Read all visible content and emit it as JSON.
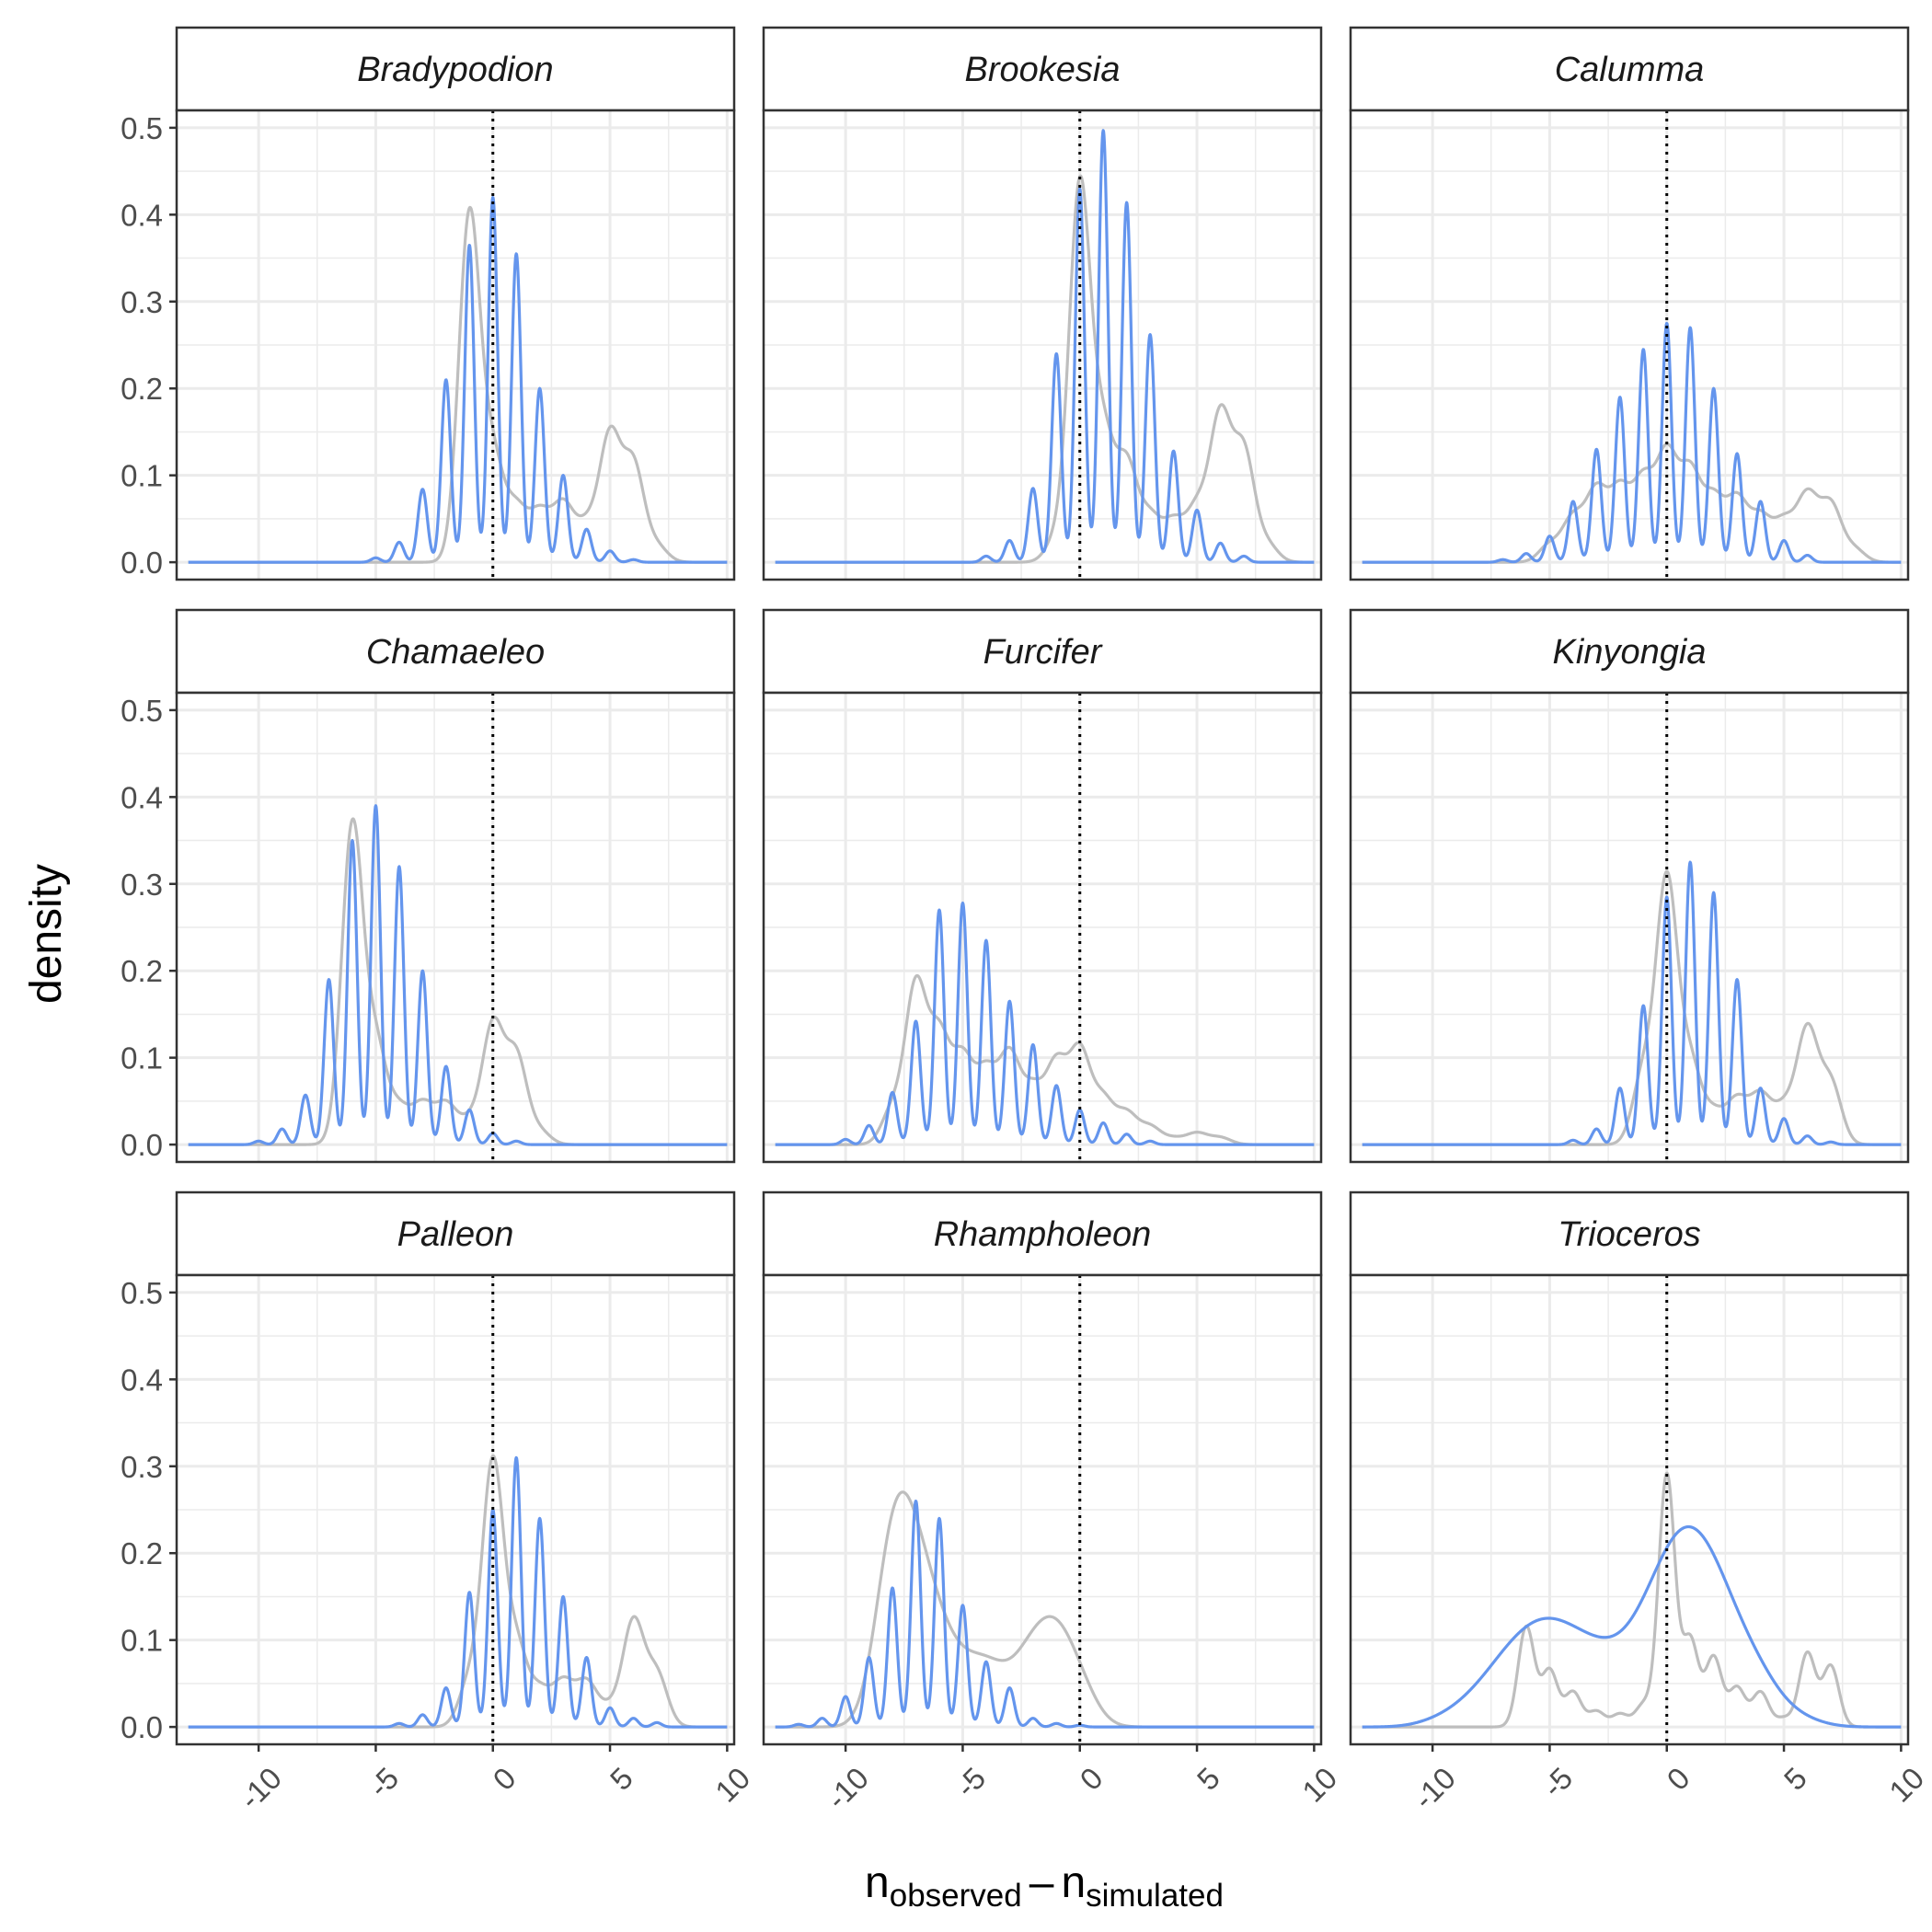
{
  "chart_data": {
    "type": "line",
    "facet_layout": "3x3",
    "xlabel_parts": {
      "base_left": "n",
      "sub_left": "observed",
      "operator": "–",
      "base_right": "n",
      "sub_right": "simulated"
    },
    "ylabel": "density",
    "xlim": [
      -13.5,
      10.3
    ],
    "ylim": [
      -0.02,
      0.52
    ],
    "x_ticks": [
      -10,
      -5,
      0,
      5,
      10
    ],
    "y_ticks": [
      0.0,
      0.1,
      0.2,
      0.3,
      0.4,
      0.5
    ],
    "y_tick_labels": [
      "0.0",
      "0.1",
      "0.2",
      "0.3",
      "0.4",
      "0.5"
    ],
    "x_tick_labels": [
      "-10",
      "-5",
      "0",
      "5",
      "10"
    ],
    "reference_line_x": 0,
    "grid": true,
    "colors": {
      "blue_series": "#6495ED",
      "gray_series": "#BEBEBE",
      "grid": "#EBEBEB",
      "strip_fill": "#FFFFFF",
      "border": "#333333"
    },
    "panels": [
      {
        "title": "Bradypodion",
        "blue": {
          "sigma": 0.2,
          "peaks": [
            [
              -5,
              0.005
            ],
            [
              -4,
              0.023
            ],
            [
              -3,
              0.084
            ],
            [
              -2,
              0.21
            ],
            [
              -1,
              0.365
            ],
            [
              0,
              0.42
            ],
            [
              1,
              0.355
            ],
            [
              2,
              0.2
            ],
            [
              3,
              0.1
            ],
            [
              4,
              0.038
            ],
            [
              5,
              0.013
            ],
            [
              6,
              0.003
            ]
          ]
        },
        "gray": {
          "sigma": 0.45,
          "peaks": [
            [
              -1,
              0.398
            ],
            [
              0,
              0.115
            ],
            [
              1,
              0.06
            ],
            [
              2,
              0.055
            ],
            [
              3,
              0.065
            ],
            [
              4,
              0.04
            ],
            [
              5,
              0.143
            ],
            [
              6,
              0.11
            ],
            [
              7,
              0.018
            ]
          ]
        }
      },
      {
        "title": "Brookesia",
        "blue": {
          "sigma": 0.2,
          "peaks": [
            [
              -4,
              0.007
            ],
            [
              -3,
              0.025
            ],
            [
              -2,
              0.085
            ],
            [
              -1,
              0.24
            ],
            [
              0,
              0.43
            ],
            [
              1,
              0.497
            ],
            [
              2,
              0.414
            ],
            [
              3,
              0.262
            ],
            [
              4,
              0.128
            ],
            [
              5,
              0.06
            ],
            [
              6,
              0.022
            ],
            [
              7,
              0.007
            ]
          ]
        },
        "gray": {
          "sigma": 0.45,
          "peaks": [
            [
              -1,
              0.025
            ],
            [
              0,
              0.43
            ],
            [
              1,
              0.14
            ],
            [
              2,
              0.11
            ],
            [
              3,
              0.05
            ],
            [
              4,
              0.045
            ],
            [
              5,
              0.06
            ],
            [
              6,
              0.165
            ],
            [
              7,
              0.125
            ],
            [
              8,
              0.02
            ]
          ]
        }
      },
      {
        "title": "Calumma",
        "blue": {
          "sigma": 0.2,
          "peaks": [
            [
              -7,
              0.003
            ],
            [
              -6,
              0.01
            ],
            [
              -5,
              0.03
            ],
            [
              -4,
              0.07
            ],
            [
              -3,
              0.13
            ],
            [
              -2,
              0.19
            ],
            [
              -1,
              0.245
            ],
            [
              0,
              0.275
            ],
            [
              1,
              0.27
            ],
            [
              2,
              0.2
            ],
            [
              3,
              0.125
            ],
            [
              4,
              0.07
            ],
            [
              5,
              0.025
            ],
            [
              6,
              0.008
            ]
          ]
        },
        "gray": {
          "sigma": 0.45,
          "peaks": [
            [
              -5,
              0.02
            ],
            [
              -4,
              0.05
            ],
            [
              -3,
              0.08
            ],
            [
              -2,
              0.08
            ],
            [
              -1,
              0.09
            ],
            [
              0,
              0.12
            ],
            [
              1,
              0.1
            ],
            [
              2,
              0.07
            ],
            [
              3,
              0.07
            ],
            [
              4,
              0.05
            ],
            [
              5,
              0.045
            ],
            [
              6,
              0.075
            ],
            [
              7,
              0.065
            ],
            [
              8,
              0.015
            ]
          ]
        }
      },
      {
        "title": "Chamaeleo",
        "blue": {
          "sigma": 0.2,
          "peaks": [
            [
              -10,
              0.004
            ],
            [
              -9,
              0.018
            ],
            [
              -8,
              0.057
            ],
            [
              -7,
              0.19
            ],
            [
              -6,
              0.35
            ],
            [
              -5,
              0.39
            ],
            [
              -4,
              0.32
            ],
            [
              -3,
              0.2
            ],
            [
              -2,
              0.09
            ],
            [
              -1,
              0.04
            ],
            [
              0,
              0.013
            ],
            [
              1,
              0.004
            ]
          ]
        },
        "gray": {
          "sigma": 0.45,
          "peaks": [
            [
              -6,
              0.365
            ],
            [
              -5,
              0.11
            ],
            [
              -4,
              0.04
            ],
            [
              -3,
              0.045
            ],
            [
              -2,
              0.045
            ],
            [
              -1,
              0.025
            ],
            [
              0,
              0.135
            ],
            [
              1,
              0.1
            ],
            [
              2,
              0.015
            ]
          ]
        }
      },
      {
        "title": "Furcifer",
        "blue": {
          "sigma": 0.2,
          "peaks": [
            [
              -10,
              0.006
            ],
            [
              -9,
              0.022
            ],
            [
              -8,
              0.06
            ],
            [
              -7,
              0.142
            ],
            [
              -6,
              0.27
            ],
            [
              -5,
              0.278
            ],
            [
              -4,
              0.235
            ],
            [
              -3,
              0.165
            ],
            [
              -2,
              0.115
            ],
            [
              -1,
              0.068
            ],
            [
              0,
              0.04
            ],
            [
              1,
              0.025
            ],
            [
              2,
              0.012
            ],
            [
              3,
              0.004
            ]
          ]
        },
        "gray": {
          "sigma": 0.45,
          "peaks": [
            [
              -8,
              0.04
            ],
            [
              -7,
              0.18
            ],
            [
              -6,
              0.12
            ],
            [
              -5,
              0.095
            ],
            [
              -4,
              0.08
            ],
            [
              -3,
              0.1
            ],
            [
              -2,
              0.06
            ],
            [
              -1,
              0.09
            ],
            [
              0,
              0.105
            ],
            [
              1,
              0.05
            ],
            [
              2,
              0.035
            ],
            [
              3,
              0.02
            ],
            [
              4,
              0.007
            ],
            [
              5,
              0.013
            ],
            [
              6,
              0.008
            ]
          ]
        }
      },
      {
        "title": "Kinyongia",
        "blue": {
          "sigma": 0.2,
          "peaks": [
            [
              -4,
              0.005
            ],
            [
              -3,
              0.018
            ],
            [
              -2,
              0.065
            ],
            [
              -1,
              0.16
            ],
            [
              0,
              0.285
            ],
            [
              1,
              0.325
            ],
            [
              2,
              0.29
            ],
            [
              3,
              0.19
            ],
            [
              4,
              0.065
            ],
            [
              5,
              0.03
            ],
            [
              6,
              0.01
            ],
            [
              7,
              0.003
            ]
          ]
        },
        "gray": {
          "sigma": 0.45,
          "peaks": [
            [
              -1,
              0.08
            ],
            [
              0,
              0.3
            ],
            [
              1,
              0.09
            ],
            [
              2,
              0.035
            ],
            [
              3,
              0.05
            ],
            [
              4,
              0.055
            ],
            [
              5,
              0.04
            ],
            [
              6,
              0.13
            ],
            [
              7,
              0.07
            ]
          ]
        }
      },
      {
        "title": "Palleon",
        "blue": {
          "sigma": 0.2,
          "peaks": [
            [
              -4,
              0.004
            ],
            [
              -3,
              0.014
            ],
            [
              -2,
              0.045
            ],
            [
              -1,
              0.155
            ],
            [
              0,
              0.25
            ],
            [
              1,
              0.31
            ],
            [
              2,
              0.24
            ],
            [
              3,
              0.15
            ],
            [
              4,
              0.08
            ],
            [
              5,
              0.022
            ],
            [
              6,
              0.01
            ],
            [
              7,
              0.005
            ]
          ]
        },
        "gray": {
          "sigma": 0.45,
          "peaks": [
            [
              -1,
              0.05
            ],
            [
              0,
              0.3
            ],
            [
              1,
              0.09
            ],
            [
              2,
              0.04
            ],
            [
              3,
              0.05
            ],
            [
              4,
              0.05
            ],
            [
              5,
              0.02
            ],
            [
              6,
              0.12
            ],
            [
              7,
              0.06
            ]
          ]
        }
      },
      {
        "title": "Rhampholeon",
        "blue": {
          "sigma": 0.2,
          "peaks": [
            [
              -12,
              0.003
            ],
            [
              -11,
              0.01
            ],
            [
              -10,
              0.035
            ],
            [
              -9,
              0.08
            ],
            [
              -8,
              0.16
            ],
            [
              -7,
              0.26
            ],
            [
              -6,
              0.24
            ],
            [
              -5,
              0.14
            ],
            [
              -4,
              0.075
            ],
            [
              -3,
              0.045
            ],
            [
              -2,
              0.01
            ],
            [
              -1,
              0.004
            ],
            [
              0,
              0.002
            ]
          ]
        },
        "gray": {
          "sigma": 0.75,
          "peaks": [
            [
              -8,
              0.19
            ],
            [
              -7,
              0.135
            ],
            [
              -6,
              0.07
            ],
            [
              -5,
              0.04
            ],
            [
              -4,
              0.05
            ],
            [
              -3,
              0.028
            ],
            [
              -2,
              0.065
            ],
            [
              -1,
              0.08
            ],
            [
              0,
              0.04
            ]
          ]
        }
      },
      {
        "title": "Trioceros",
        "blue": {
          "sigma": 0.9,
          "peaks": [
            [
              -10,
              0.004
            ],
            [
              -9,
              0.01
            ],
            [
              -8,
              0.022
            ],
            [
              -7,
              0.04
            ],
            [
              -6,
              0.055
            ],
            [
              -5,
              0.06
            ],
            [
              -4,
              0.052
            ],
            [
              -3,
              0.044
            ],
            [
              -2,
              0.04
            ],
            [
              -1,
              0.06
            ],
            [
              0,
              0.1
            ],
            [
              1,
              0.115
            ],
            [
              2,
              0.095
            ],
            [
              3,
              0.055
            ],
            [
              4,
              0.035
            ],
            [
              5,
              0.01
            ],
            [
              6,
              0.005
            ]
          ]
        },
        "gray": {
          "sigma": 0.35,
          "peaks": [
            [
              -6,
              0.115
            ],
            [
              -5,
              0.065
            ],
            [
              -4,
              0.04
            ],
            [
              -3,
              0.018
            ],
            [
              -2,
              0.015
            ],
            [
              -1,
              0.025
            ],
            [
              0,
              0.29
            ],
            [
              1,
              0.1
            ],
            [
              2,
              0.08
            ],
            [
              3,
              0.045
            ],
            [
              4,
              0.04
            ],
            [
              5,
              0.01
            ],
            [
              6,
              0.085
            ],
            [
              7,
              0.07
            ]
          ]
        }
      }
    ]
  }
}
